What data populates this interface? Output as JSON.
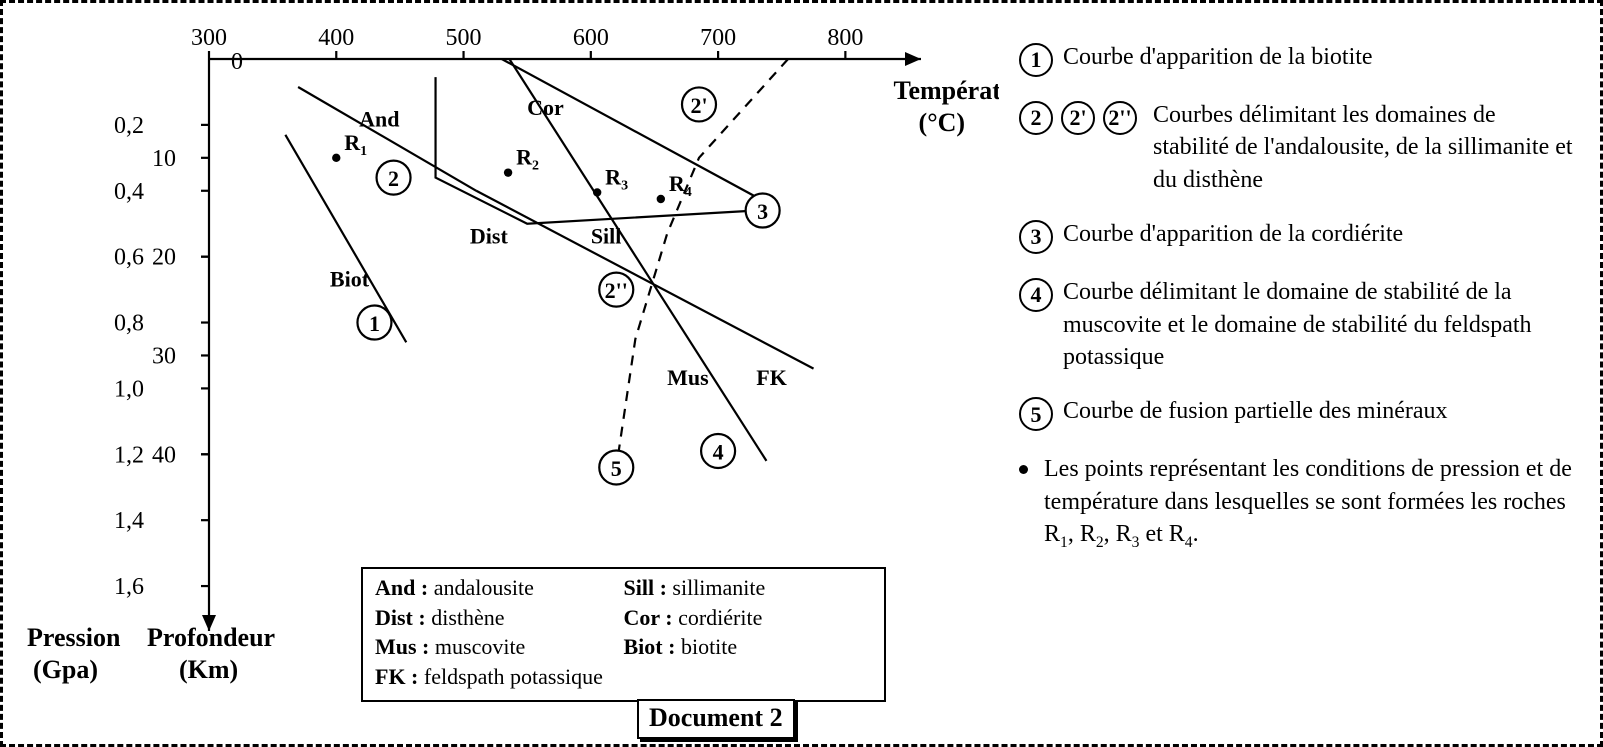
{
  "figure": {
    "doc_label": "Document 2",
    "x_axis": {
      "label": "Température\n(°C)",
      "ticks": [
        300,
        400,
        500,
        600,
        700,
        800
      ],
      "lim": [
        300,
        850
      ]
    },
    "y_left": {
      "label": "Pression\n(Gpa)",
      "ticks": [
        0.2,
        0.4,
        0.6,
        0.8,
        1.0,
        1.2,
        1.4,
        1.6
      ],
      "lim": [
        0,
        1.7
      ]
    },
    "y_right_km": {
      "label": "Profondeur\n(Km)",
      "ticks": [
        10,
        20,
        30,
        40
      ],
      "gpa_per_km": 0.03
    },
    "colors": {
      "stroke": "#000000",
      "background": "#ffffff",
      "dash": "#000000"
    },
    "line_width": 2.2,
    "curves": {
      "1": {
        "id": "biotite",
        "points": [
          [
            360,
            0.23
          ],
          [
            455,
            0.86
          ]
        ],
        "dashed": false
      },
      "2": {
        "id": "and-dist",
        "points": [
          [
            370,
            0.085
          ],
          [
            510,
            0.4
          ]
        ],
        "dashed": false
      },
      "2prime": {
        "id": "and-cor",
        "points": [
          [
            530,
            0.0
          ],
          [
            740,
            0.44
          ]
        ],
        "dashed": false
      },
      "2double": {
        "id": "dist-sill",
        "points": [
          [
            510,
            0.4
          ],
          [
            775,
            0.94
          ]
        ],
        "dashed": false
      },
      "3": {
        "id": "cordierite",
        "points": [
          [
            478,
            0.055
          ],
          [
            478,
            0.36
          ],
          [
            550,
            0.5
          ],
          [
            730,
            0.46
          ]
        ],
        "dashed": false
      },
      "4": {
        "id": "mus-fk",
        "points": [
          [
            536,
            0.0
          ],
          [
            738,
            1.22
          ]
        ],
        "dashed": false
      },
      "5": {
        "id": "fusion",
        "points": [
          [
            755,
            0.0
          ],
          [
            685,
            0.3
          ],
          [
            660,
            0.53
          ],
          [
            635,
            0.85
          ],
          [
            620,
            1.24
          ]
        ],
        "dashed": true
      }
    },
    "curve_markers": {
      "1": {
        "label": "1",
        "at": [
          430,
          0.8
        ]
      },
      "2": {
        "label": "2",
        "at": [
          445,
          0.36
        ]
      },
      "2p": {
        "label": "2'",
        "at": [
          685,
          0.138
        ]
      },
      "2pp": {
        "label": "2''",
        "at": [
          620,
          0.7
        ]
      },
      "3": {
        "label": "3",
        "at": [
          735,
          0.46
        ]
      },
      "4": {
        "label": "4",
        "at": [
          700,
          1.19
        ]
      },
      "5": {
        "label": "5",
        "at": [
          620,
          1.24
        ]
      }
    },
    "mineral_labels": {
      "And": {
        "text": "And",
        "at": [
          418,
          0.205
        ]
      },
      "Cor": {
        "text": "Cor",
        "at": [
          550,
          0.17
        ]
      },
      "Dist": {
        "text": "Dist",
        "at": [
          505,
          0.56
        ]
      },
      "Sill": {
        "text": "Sill",
        "at": [
          600,
          0.56
        ]
      },
      "Biot": {
        "text": "Biot",
        "at": [
          395,
          0.69
        ]
      },
      "Mus": {
        "text": "Mus",
        "at": [
          660,
          0.99
        ]
      },
      "FK": {
        "text": "FK",
        "at": [
          730,
          0.99
        ]
      }
    },
    "points": {
      "R1": {
        "T": 400,
        "P": 0.3
      },
      "R2": {
        "T": 535,
        "P": 0.345
      },
      "R3": {
        "T": 605,
        "P": 0.405
      },
      "R4": {
        "T": 655,
        "P": 0.425
      }
    }
  },
  "key_box": {
    "items": [
      {
        "abbr": "And",
        "full": "andalousite"
      },
      {
        "abbr": "Sill",
        "full": "sillimanite"
      },
      {
        "abbr": "Dist",
        "full": "disthène"
      },
      {
        "abbr": "Cor",
        "full": "cordiérite"
      },
      {
        "abbr": "Mus",
        "full": "muscovite"
      },
      {
        "abbr": "Biot",
        "full": "biotite"
      },
      {
        "abbr": "FK",
        "full": "feldspath potassique"
      }
    ]
  },
  "legend": {
    "item1": {
      "bubbles": [
        "1"
      ],
      "text": "Courbe d'apparition de la biotite"
    },
    "item2": {
      "bubbles": [
        "2",
        "2'",
        "2''"
      ],
      "text": "Courbes délimitant les domaines de stabilité de l'andalousite, de la sillimanite et du disthène"
    },
    "item3": {
      "bubbles": [
        "3"
      ],
      "text": "Courbe d'apparition de la cordiérite"
    },
    "item4": {
      "bubbles": [
        "4"
      ],
      "text": "Courbe délimitant le domaine de stabilité de la muscovite et le domaine de stabilité du feldspath potassique"
    },
    "item5": {
      "bubbles": [
        "5"
      ],
      "text": "Courbe de fusion partielle des minéraux"
    },
    "note_html": "Les points représentant les conditions de pression et de température dans lesquelles se sont formées les roches R<sub>1</sub>, R<sub>2</sub>, R<sub>3</sub> et R<sub>4</sub>."
  }
}
